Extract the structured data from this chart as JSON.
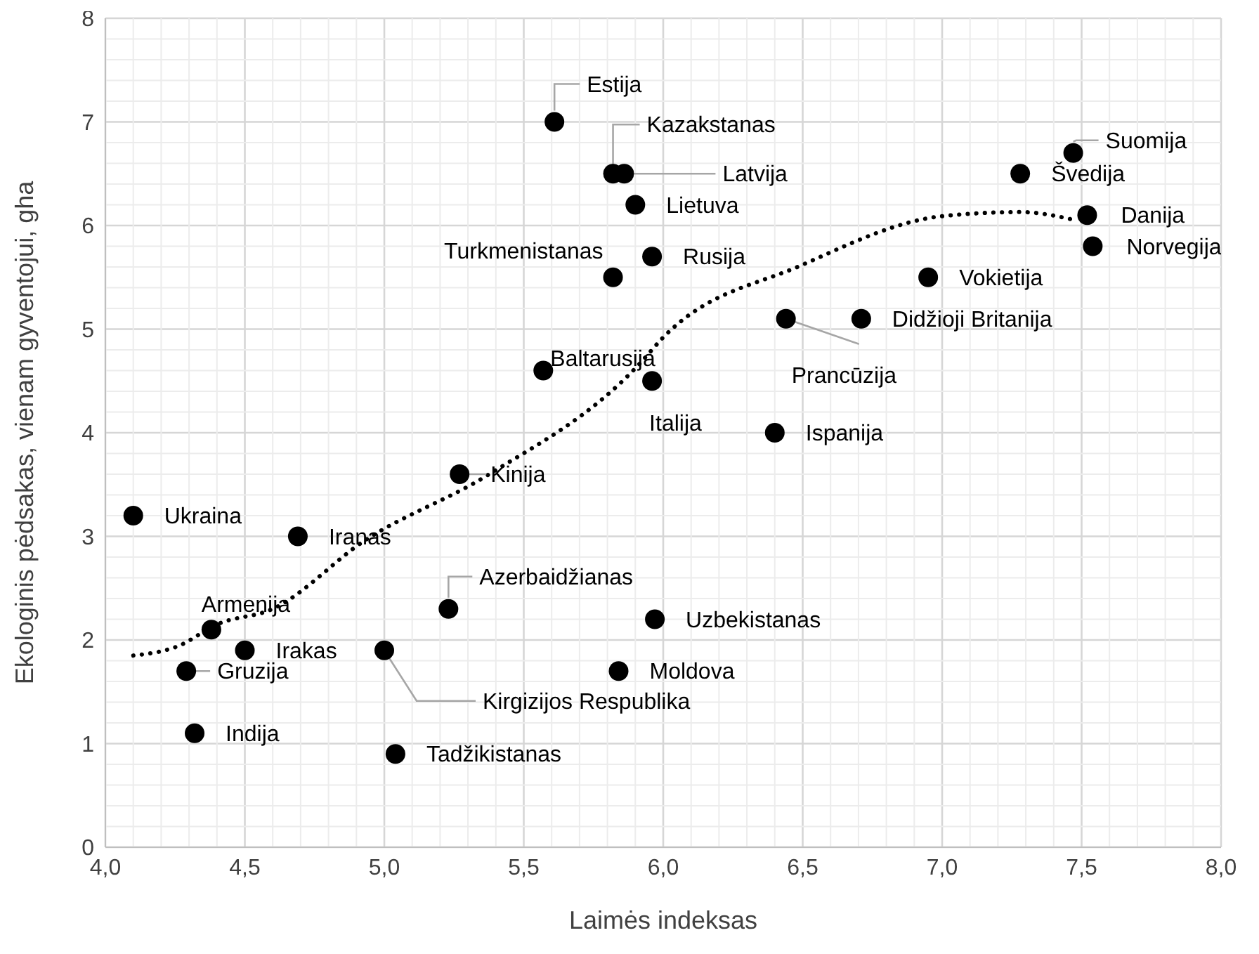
{
  "chart_data": {
    "type": "scatter",
    "xlabel": "Laimės indeksas",
    "ylabel": "Ekologinis pėdsakas, vienam gyventojui, gha",
    "xlim": [
      4,
      8
    ],
    "xticks": [
      {
        "value": 4,
        "label": "4,0"
      },
      {
        "value": 4.5,
        "label": "4,5"
      },
      {
        "value": 5,
        "label": "5,0"
      },
      {
        "value": 5.5,
        "label": "5,5"
      },
      {
        "value": 6,
        "label": "6,0"
      },
      {
        "value": 6.5,
        "label": "6,5"
      },
      {
        "value": 7,
        "label": "7,0"
      },
      {
        "value": 7.5,
        "label": "7,5"
      },
      {
        "value": 8,
        "label": "8,0"
      }
    ],
    "ylim": [
      0,
      8
    ],
    "yticks": [
      0,
      1,
      2,
      3,
      4,
      5,
      6,
      7,
      8
    ],
    "grid": true,
    "series": [
      {
        "color": "#000000",
        "marker": "circle",
        "x": [
          5.61,
          5.82,
          5.86,
          5.9,
          5.82,
          5.96,
          5.57,
          5.96,
          7.47,
          7.28,
          7.52,
          7.54,
          6.95,
          6.44,
          6.71,
          6.4,
          5.27,
          4.1,
          4.69,
          5.23,
          5.97,
          4.38,
          4.5,
          5.0,
          4.29,
          5.84,
          4.32,
          5.04
        ],
        "values": [
          7.0,
          6.5,
          6.5,
          6.2,
          5.5,
          5.7,
          4.6,
          4.5,
          6.7,
          6.5,
          6.1,
          5.8,
          5.5,
          5.1,
          5.1,
          4.0,
          3.6,
          3.2,
          3.0,
          2.3,
          2.2,
          2.1,
          1.9,
          1.9,
          1.7,
          1.7,
          1.1,
          0.9
        ],
        "value_labels": [
          "Estija",
          "Kazakstanas",
          "Latvija",
          "Lietuva",
          "Turkmenistanas",
          "Rusija",
          "Baltarusija",
          "Italija",
          "Suomija",
          "Švedija",
          "Danija",
          "Norvegija",
          "Vokietija",
          "Prancūzija",
          "Didžioji Britanija",
          "Ispanija",
          "Kinija",
          "Ukraina",
          "Iranas",
          "Azerbaidžianas",
          "Uzbekistanas",
          "Armenija",
          "Irakas",
          "Kirgizijos Respublika",
          "Gruzija",
          "Moldova",
          "Indija",
          "Tadžikistanas"
        ]
      },
      {
        "type": "line",
        "color": "#000000",
        "marker": "none",
        "line_style": "dotted",
        "x": [
          4.1,
          4.26,
          4.4,
          4.6,
          4.93,
          5.37,
          5.91,
          6.0,
          6.49,
          7.0,
          7.28,
          7.48
        ],
        "values": [
          1.85,
          1.94,
          2.15,
          2.3,
          2.96,
          3.59,
          4.65,
          4.92,
          5.61,
          6.09,
          6.13,
          6.05
        ]
      }
    ]
  }
}
